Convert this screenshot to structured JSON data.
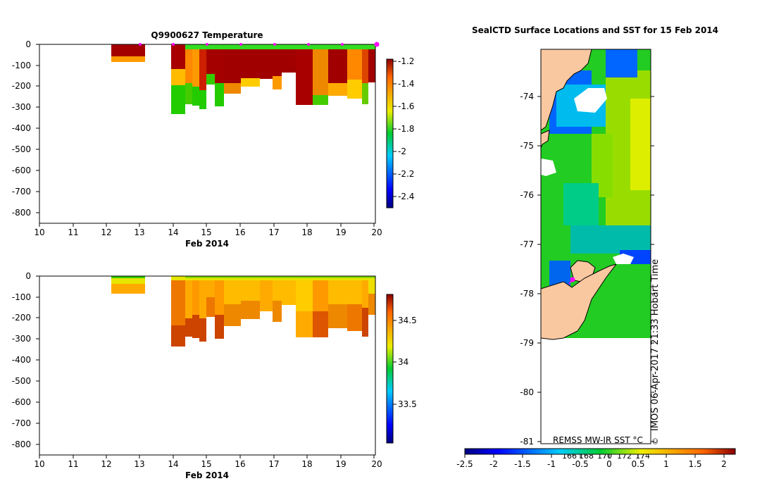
{
  "chart_data": [
    {
      "type": "heatmap",
      "title": "Q9900627  Temperature",
      "xlabel": "Feb 2014",
      "ylabel": "",
      "xlim": [
        10,
        20.1
      ],
      "ylim": [
        -850,
        0
      ],
      "x_ticks": [
        "10",
        "11",
        "12",
        "13",
        "14",
        "15",
        "16",
        "17",
        "18",
        "19",
        "20"
      ],
      "y_ticks": [
        "0",
        "-100",
        "-200",
        "-300",
        "-400",
        "-500",
        "-600",
        "-700",
        "-800"
      ],
      "colorbar": {
        "ticks": [
          "-1.2",
          "-1.4",
          "-1.6",
          "-1.8",
          "-2",
          "-2.2",
          "-2.4"
        ],
        "range": [
          -2.5,
          -1.15
        ]
      },
      "profile_markers_x": [
        13,
        14,
        15,
        16,
        17,
        18,
        19,
        20
      ],
      "profiles": [
        {
          "x0": 12.2,
          "x1": 13.1,
          "depth": -85
        },
        {
          "x0": 14.0,
          "x1": 14.4,
          "depth": -335
        },
        {
          "x0": 14.4,
          "x1": 14.6,
          "depth": -285
        },
        {
          "x0": 14.6,
          "x1": 14.8,
          "depth": -290
        },
        {
          "x0": 14.8,
          "x1": 15.0,
          "depth": -310
        },
        {
          "x0": 15.0,
          "x1": 15.25,
          "depth": -195
        },
        {
          "x0": 15.25,
          "x1": 15.5,
          "depth": -300
        },
        {
          "x0": 15.5,
          "x1": 16.0,
          "depth": -235
        },
        {
          "x0": 16.0,
          "x1": 16.55,
          "depth": -205
        },
        {
          "x0": 16.55,
          "x1": 16.95,
          "depth": -165
        },
        {
          "x0": 16.95,
          "x1": 17.2,
          "depth": -215
        },
        {
          "x0": 17.2,
          "x1": 17.6,
          "depth": -135
        },
        {
          "x0": 17.6,
          "x1": 18.1,
          "depth": -285
        },
        {
          "x0": 18.1,
          "x1": 18.55,
          "depth": -285
        },
        {
          "x0": 18.55,
          "x1": 19.1,
          "depth": -240
        },
        {
          "x0": 19.1,
          "x1": 19.55,
          "depth": -255
        },
        {
          "x0": 19.55,
          "x1": 19.75,
          "depth": -290
        },
        {
          "x0": 19.75,
          "x1": 20.0,
          "depth": -180
        }
      ]
    },
    {
      "type": "heatmap",
      "title": "",
      "xlabel": "Feb 2014",
      "ylabel": "",
      "xlim": [
        10,
        20.1
      ],
      "ylim": [
        -850,
        0
      ],
      "x_ticks": [
        "10",
        "11",
        "12",
        "13",
        "14",
        "15",
        "16",
        "17",
        "18",
        "19",
        "20"
      ],
      "y_ticks": [
        "0",
        "-100",
        "-200",
        "-300",
        "-400",
        "-500",
        "-600",
        "-700",
        "-800"
      ],
      "colorbar": {
        "ticks": [
          "34.5",
          "34",
          "33.5"
        ],
        "range": [
          32.95,
          34.8
        ]
      }
    },
    {
      "type": "heatmap",
      "title": "SealCTD Surface Locations and SST for 15 Feb 2014",
      "y_ticks": [
        "-74",
        "-75",
        "-76",
        "-77",
        "-78",
        "-79",
        "-80",
        "-81"
      ],
      "ylim": [
        -81,
        -73
      ],
      "x_ticks": [
        "166",
        "168",
        "170",
        "172",
        "174"
      ],
      "colorbar": {
        "ticks": [
          "-2.5",
          "-2",
          "-1.5",
          "-1",
          "-0.5",
          "0",
          "0.5",
          "1",
          "1.5",
          "2"
        ],
        "range": [
          -2.5,
          2.2
        ]
      },
      "colorbar_label": "REMSS MW-IR SST °C",
      "credit": "IMOS 06-Apr-2017 21:33 Hobart Time",
      "credit_symbol": "©",
      "seal_location": {
        "lon": 166.6,
        "lat": -77.7
      }
    }
  ]
}
